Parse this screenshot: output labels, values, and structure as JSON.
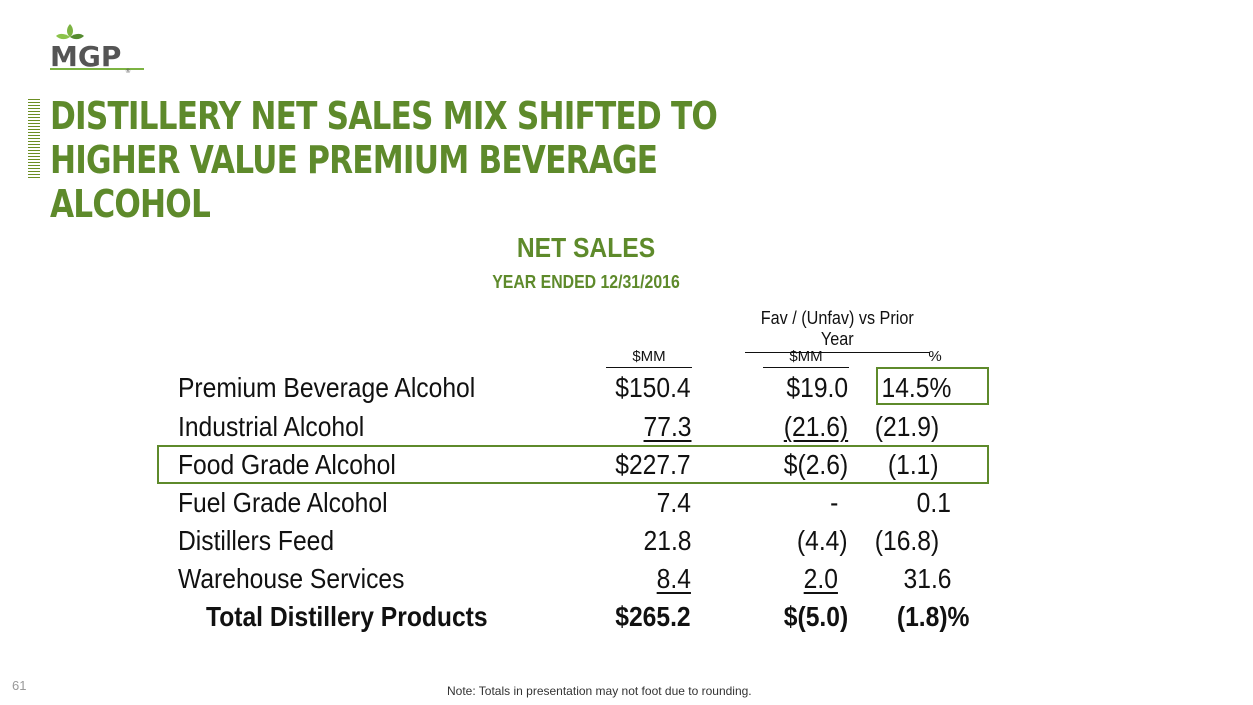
{
  "brand": {
    "logo_text": "MGP",
    "accent_color": "#5e8a2b"
  },
  "title": "DISTILLERY NET SALES MIX SHIFTED TO HIGHER VALUE PREMIUM BEVERAGE ALCOHOL",
  "subtitle1": "NET SALES",
  "subtitle2": "YEAR ENDED 12/31/2016",
  "fav_header": "Fav / (Unfav) vs Prior Year",
  "col_headers": {
    "mm1": "$MM",
    "mm2": "$MM",
    "pct": "%"
  },
  "rows": [
    {
      "label": "Premium Beverage Alcohol",
      "v1": "$150.4",
      "v2": "$19.0",
      "v3": "14.5%"
    },
    {
      "label": "Industrial Alcohol",
      "v1": "77.3",
      "v2": "(21.6)",
      "v3": "(21.9)"
    },
    {
      "label": "Food Grade Alcohol",
      "v1": "$227.7",
      "v2": "$(2.6)",
      "v3": "(1.1)"
    },
    {
      "label": "Fuel Grade Alcohol",
      "v1": "7.4",
      "v2": "-",
      "v3": "0.1"
    },
    {
      "label": "Distillers Feed",
      "v1": "21.8",
      "v2": "(4.4)",
      "v3": "(16.8)"
    },
    {
      "label": "Warehouse Services",
      "v1": "8.4",
      "v2": "2.0",
      "v3": "31.6"
    },
    {
      "label": "Total Distillery Products",
      "v1": "$265.2",
      "v2": "$(5.0)",
      "v3": "(1.8)%"
    }
  ],
  "page_number": "61",
  "note": "Note: Totals in presentation may not foot due to rounding."
}
